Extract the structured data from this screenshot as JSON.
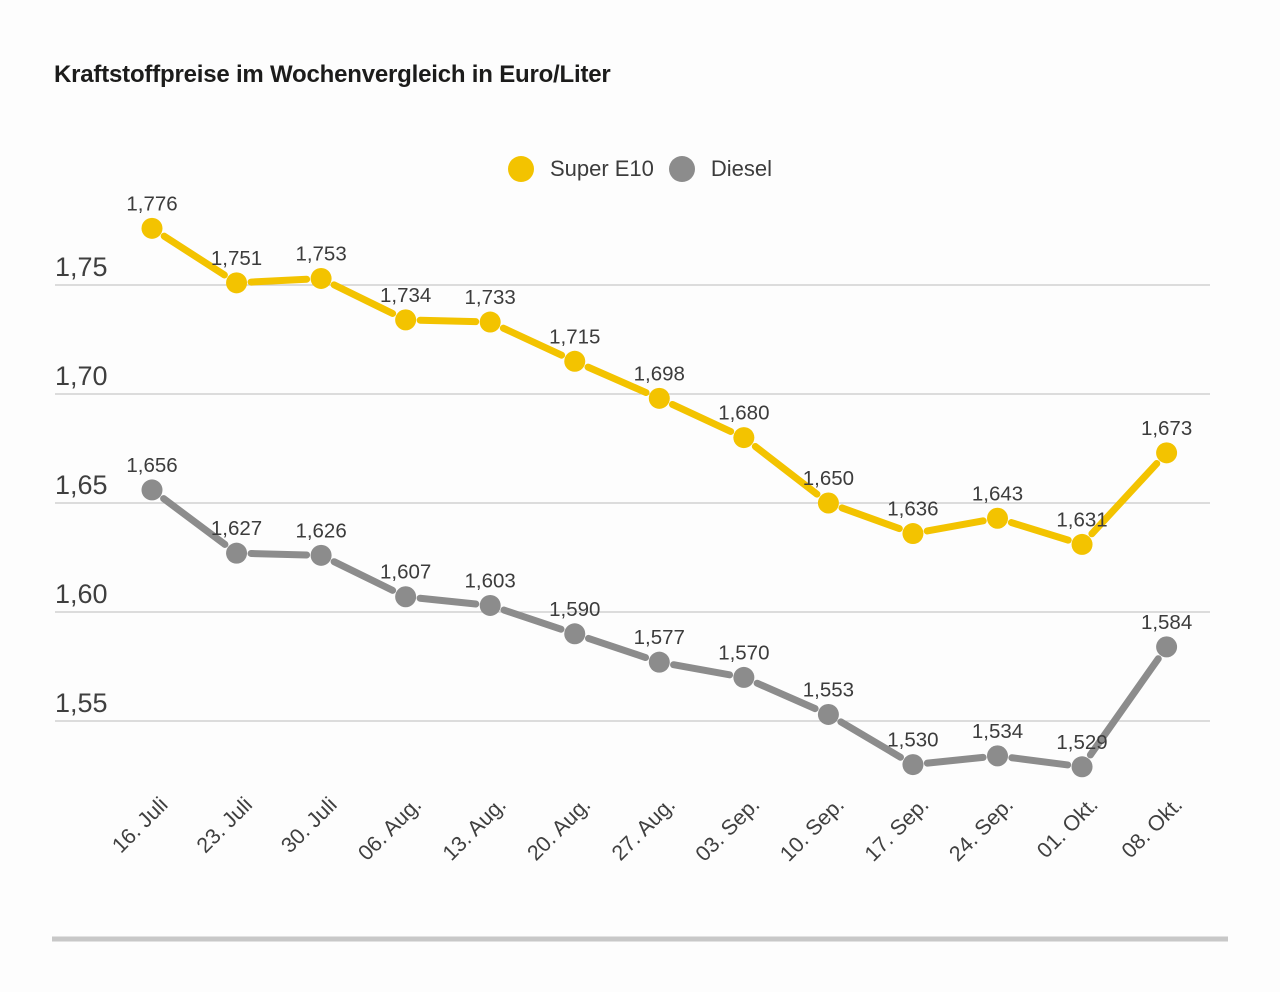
{
  "title": "Kraftstoffpreise im Wochenvergleich in Euro/Liter",
  "legend": [
    {
      "label": "Super E10",
      "color": "#F3C300"
    },
    {
      "label": "Diesel",
      "color": "#8C8C8C"
    }
  ],
  "colors": {
    "grid": "#C9C9C9",
    "axis_text": "#3F3F3F",
    "label_text": "#3C3C3C",
    "title_text": "#1C1C1B",
    "divider": "#C8C8C8",
    "background": "#FDFDFD"
  },
  "chart_data": {
    "type": "line",
    "title": "Kraftstoffpreise im Wochenvergleich in Euro/Liter",
    "unit": "Euro/Liter",
    "grid": true,
    "legend_position": "top",
    "categories": [
      "16. Juli",
      "23. Juli",
      "30. Juli",
      "06. Aug.",
      "13. Aug.",
      "20. Aug.",
      "27. Aug.",
      "03. Sep.",
      "10. Sep.",
      "17. Sep.",
      "24. Sep.",
      "01. Okt.",
      "08. Okt."
    ],
    "series": [
      {
        "name": "Super E10",
        "color": "#F3C300",
        "values": [
          1.776,
          1.751,
          1.753,
          1.734,
          1.733,
          1.715,
          1.698,
          1.68,
          1.65,
          1.636,
          1.643,
          1.631,
          1.673
        ],
        "point_labels": [
          "1,776",
          "1,751",
          "1,753",
          "1,734",
          "1,733",
          "1,715",
          "1,698",
          "1,680",
          "1,650",
          "1,636",
          "1,643",
          "1,631",
          "1,673"
        ]
      },
      {
        "name": "Diesel",
        "color": "#8C8C8C",
        "values": [
          1.656,
          1.627,
          1.626,
          1.607,
          1.603,
          1.59,
          1.577,
          1.57,
          1.553,
          1.53,
          1.534,
          1.529,
          1.584
        ],
        "point_labels": [
          "1,656",
          "1,627",
          "1,626",
          "1,607",
          "1,603",
          "1,590",
          "1,577",
          "1,570",
          "1,553",
          "1,530",
          "1,534",
          "1,529",
          "1,584"
        ]
      }
    ],
    "y_ticks": [
      {
        "label": "1,75",
        "value": 1.75
      },
      {
        "label": "1,70",
        "value": 1.7
      },
      {
        "label": "1,65",
        "value": 1.65
      },
      {
        "label": "1,60",
        "value": 1.6
      },
      {
        "label": "1,55",
        "value": 1.55
      }
    ],
    "ylim": [
      1.505,
      1.8
    ]
  }
}
